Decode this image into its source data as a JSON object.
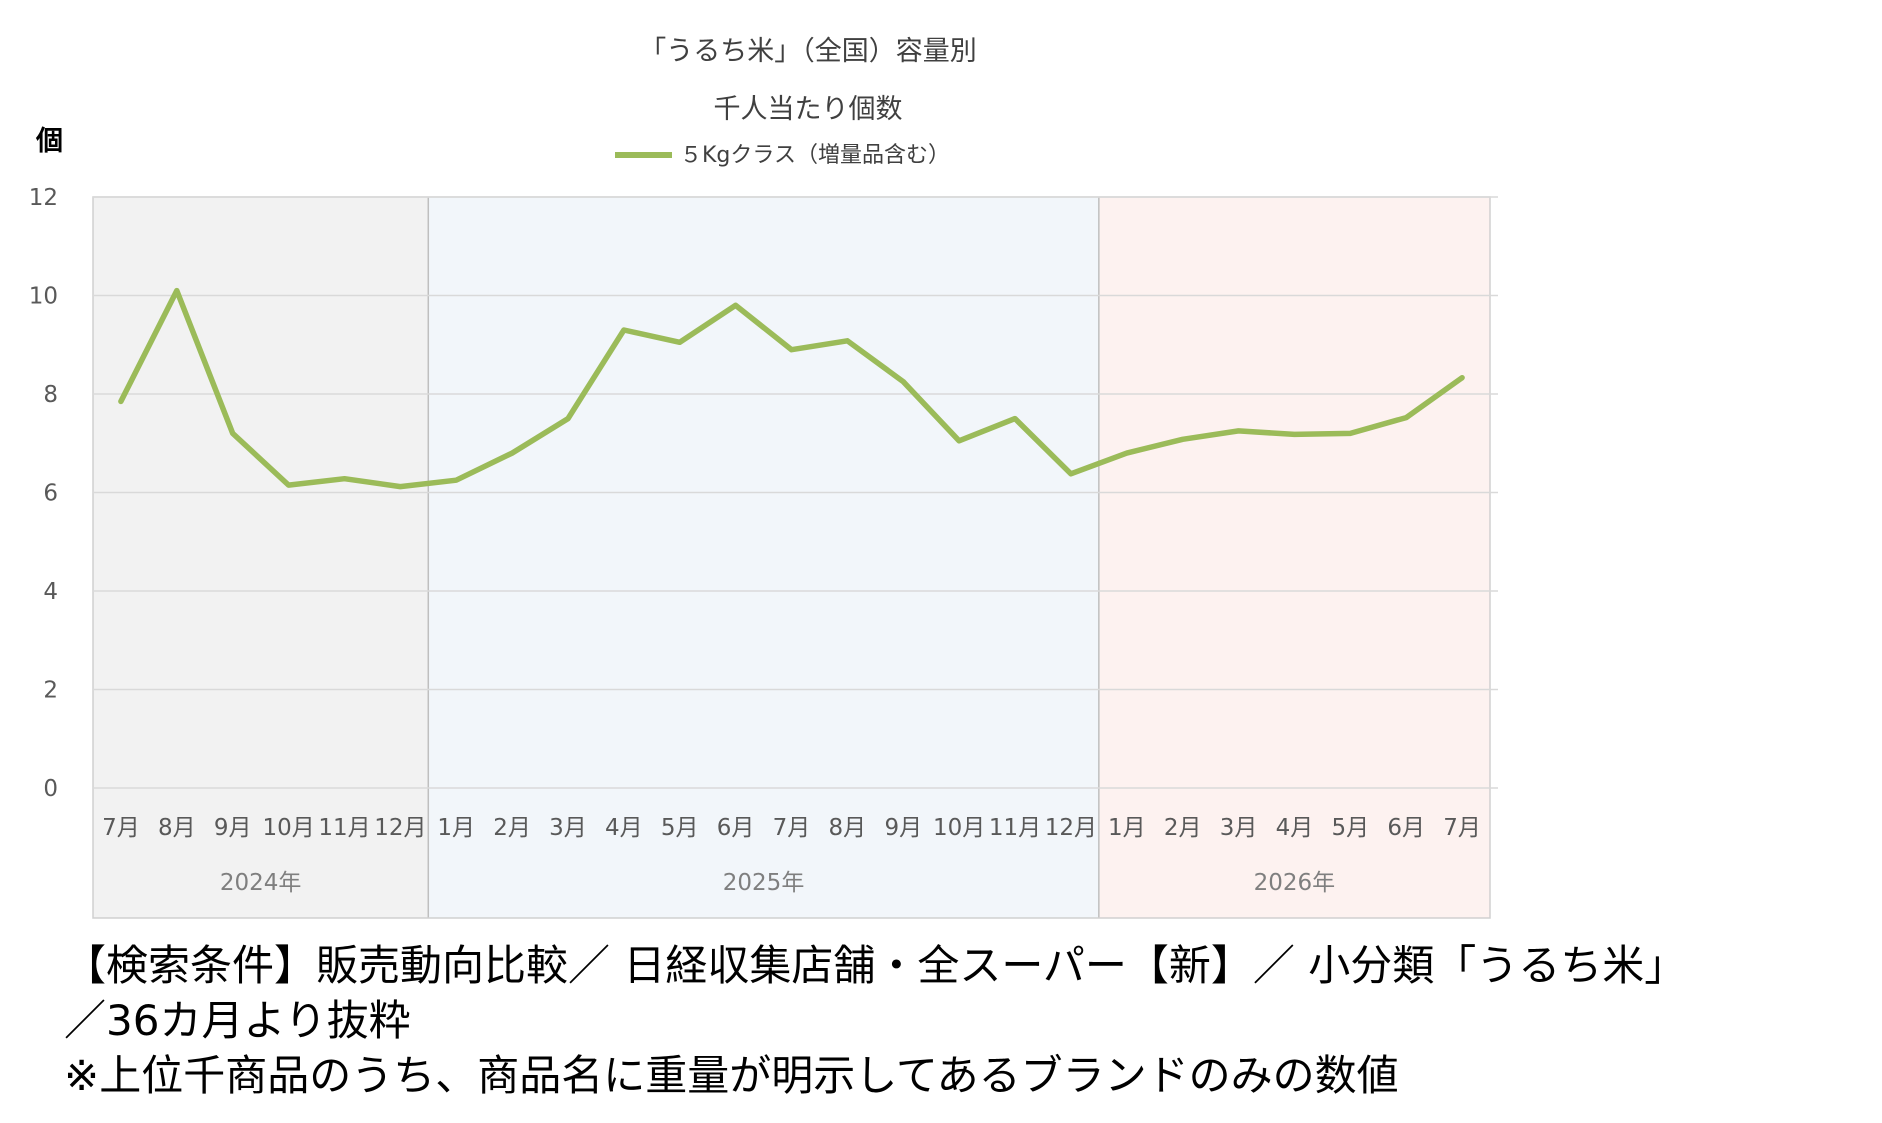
{
  "chart_data": {
    "type": "line",
    "title": "「うるち米」（全国）容量別",
    "subtitle": "千人当たり個数",
    "ylabel": "個",
    "ylim": [
      0,
      12
    ],
    "yticks": [
      0,
      2,
      4,
      6,
      8,
      10,
      12
    ],
    "grid": true,
    "legend_position": "top-center",
    "categories": [
      "7月",
      "8月",
      "9月",
      "10月",
      "11月",
      "12月",
      "1月",
      "2月",
      "3月",
      "4月",
      "5月",
      "6月",
      "7月",
      "8月",
      "9月",
      "10月",
      "11月",
      "12月",
      "1月",
      "2月",
      "3月",
      "4月",
      "5月",
      "6月",
      "7月"
    ],
    "year_groups": [
      {
        "label": "2024年",
        "start": 0,
        "end": 5,
        "color": "#f2f2f2"
      },
      {
        "label": "2025年",
        "start": 6,
        "end": 17,
        "color": "#f2f6fa"
      },
      {
        "label": "2026年",
        "start": 18,
        "end": 24,
        "color": "#fdf2f0"
      }
    ],
    "series": [
      {
        "name": "５Kgクラス（増量品含む）",
        "color": "#9bbb59",
        "values": [
          7.85,
          10.1,
          7.2,
          6.15,
          6.28,
          6.12,
          6.25,
          6.8,
          7.5,
          9.3,
          9.05,
          9.8,
          8.9,
          9.08,
          8.25,
          7.05,
          7.5,
          6.38,
          6.8,
          7.08,
          7.25,
          7.18,
          7.2,
          7.52,
          8.33
        ]
      }
    ]
  },
  "notes": {
    "line1": "【検索条件】販売動向比較／ 日経収集店舗・全スーパー【新】／ 小分類「うるち米」",
    "line2": "／36カ月より抜粋",
    "line3": "※上位千商品のうち、商品名に重量が明示してあるブランドのみの数値"
  }
}
